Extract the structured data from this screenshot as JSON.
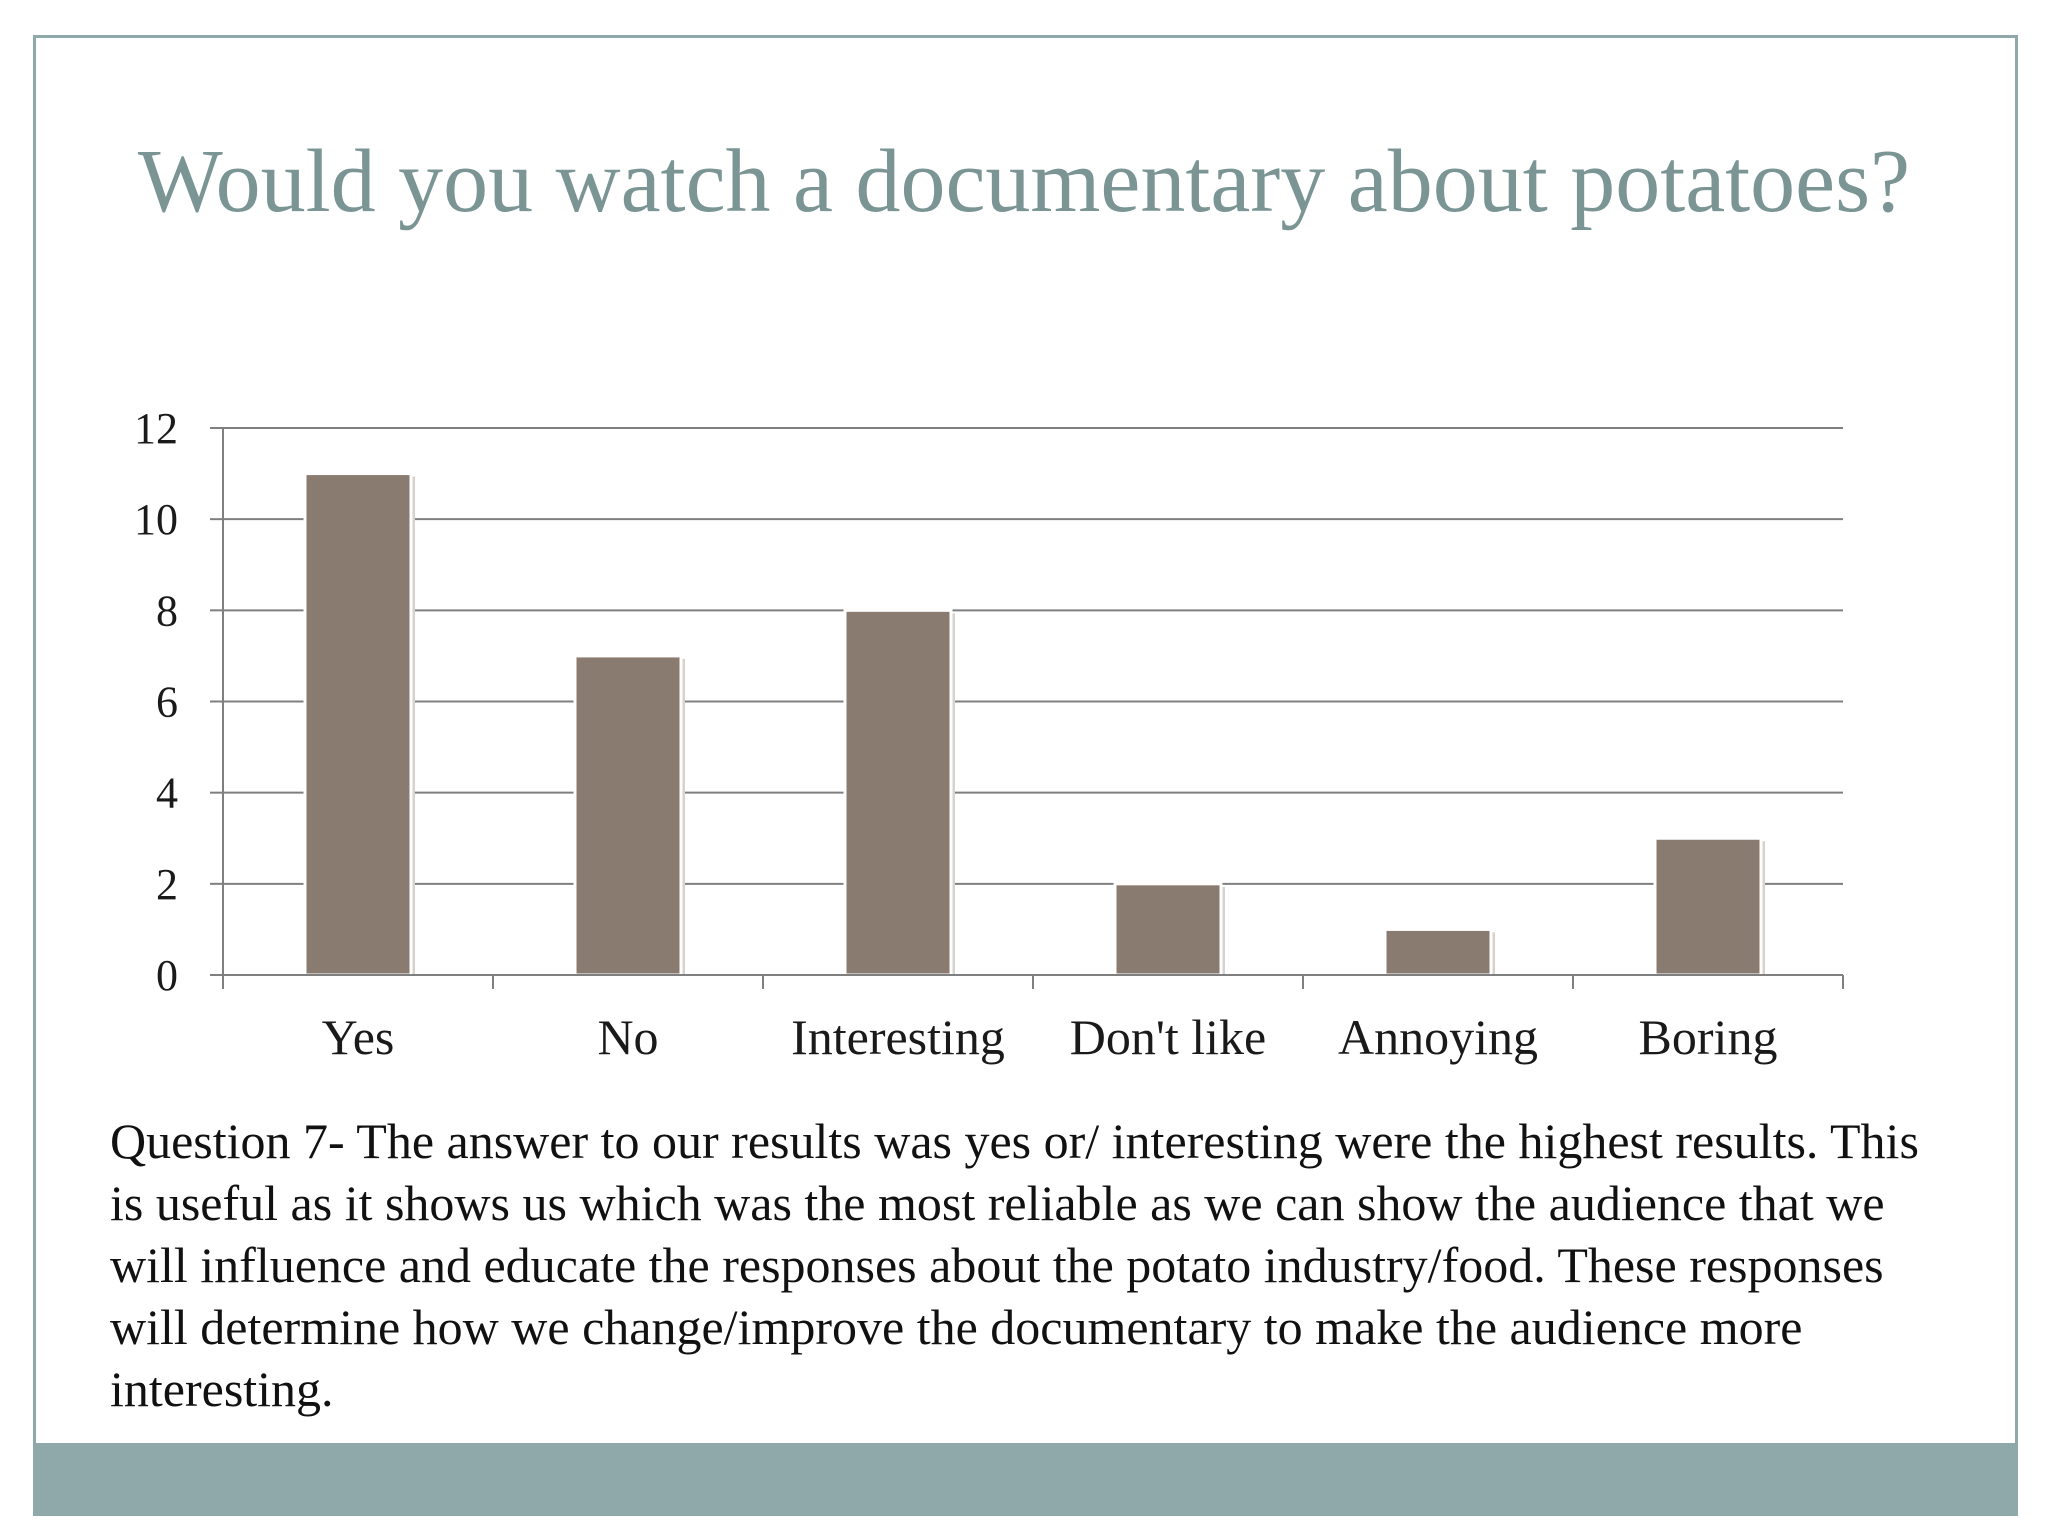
{
  "slide": {
    "title": "Would you watch a documentary about potatoes?",
    "caption": "Question 7- The answer to our results was yes or/ interesting were the highest results. This is useful as it shows us which was the most reliable as we can show the audience that we will influence and educate the responses about the potato industry/food.  These responses will determine how we change/improve the documentary to make the audience more interesting."
  },
  "colors": {
    "title": "#7a9594",
    "bar": "#8a7b70",
    "band": "#8fa9aa",
    "gridline": "#7f7f7f"
  },
  "chart_data": {
    "type": "bar",
    "categories": [
      "Yes",
      "No",
      "Interesting",
      "Don't like",
      "Annoying",
      "Boring"
    ],
    "values": [
      11,
      7,
      8,
      2,
      1,
      3
    ],
    "ylim": [
      0,
      12
    ],
    "yticks": [
      "0",
      "2",
      "4",
      "6",
      "8",
      "10",
      "12"
    ],
    "grid": true,
    "legend": "none"
  }
}
